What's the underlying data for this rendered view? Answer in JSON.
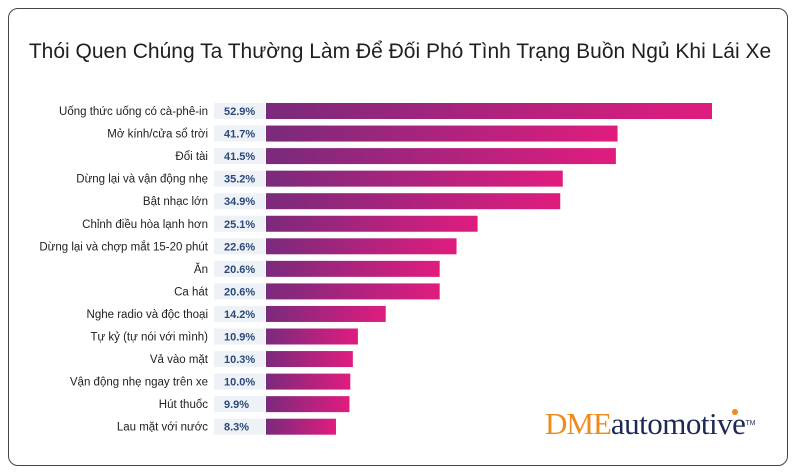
{
  "chart_data": {
    "type": "bar",
    "orientation": "horizontal",
    "title": "Thói Quen Chúng Ta Thường Làm Để Đối Phó Tình Trạng Buồn Ngủ Khi Lái Xe",
    "categories": [
      "Uống thức uống có cà-phê-in",
      "Mở kính/cửa sổ trời",
      "Đổi tài",
      "Dừng lại và vận động nhẹ",
      "Bật nhạc lớn",
      "Chỉnh điều hòa lạnh hơn",
      "Dừng lại và chợp mắt 15-20 phút",
      "Ăn",
      "Ca hát",
      "Nghe radio và độc thoại",
      "Tự kỷ (tự nói với mình)",
      "Vả vào mặt",
      "Vận động nhẹ ngay trên xe",
      "Hút thuốc",
      "Lau mặt với nước"
    ],
    "values": [
      52.9,
      41.7,
      41.5,
      35.2,
      34.9,
      25.1,
      22.6,
      20.6,
      20.6,
      14.2,
      10.9,
      10.3,
      10.0,
      9.9,
      8.3
    ],
    "value_labels": [
      "52.9%",
      "41.7%",
      "41.5%",
      "35.2%",
      "34.9%",
      "25.1%",
      "22.6%",
      "20.6%",
      "20.6%",
      "14.2%",
      "10.9%",
      "10.3%",
      "10.0%",
      "9.9%",
      "8.3%"
    ],
    "unit": "%",
    "colors": {
      "bar_start": "#7a2a7c",
      "bar_end": "#e01c7e",
      "label_bg": "#eef1f6",
      "value_text": "#2a4a7a"
    }
  },
  "brand": {
    "dme": "DME",
    "automotive": "automotive",
    "tm": "TM"
  }
}
